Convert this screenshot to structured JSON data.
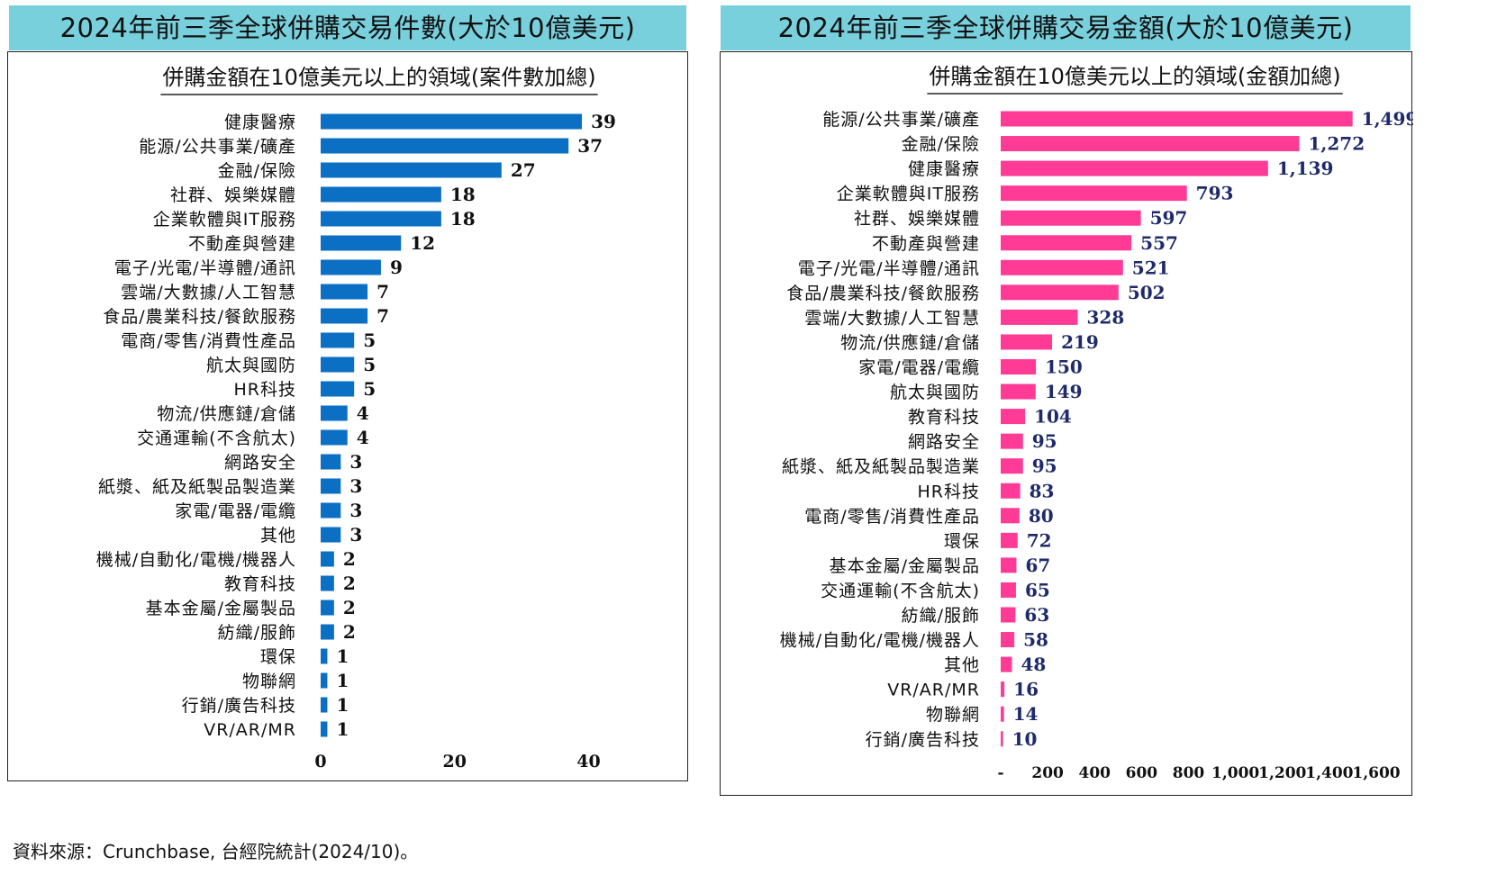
{
  "source": "資料來源：Crunchbase, 台經院統計(2024/10)。",
  "colors": {
    "banner": "#79d0dd",
    "left_bar": "#0b6fc4",
    "right_bar": "#ff3b96",
    "right_value": "#1f2a6b"
  },
  "chart_data": [
    {
      "type": "bar",
      "orientation": "horizontal",
      "title": "2024年前三季全球併購交易件數(大於10億美元)",
      "subtitle": "併購金額在10億美元以上的領域(案件數加總)",
      "categories": [
        "健康醫療",
        "能源/公共事業/礦產",
        "金融/保險",
        "社群、娛樂媒體",
        "企業軟體與IT服務",
        "不動產與營建",
        "電子/光電/半導體/通訊",
        "雲端/大數據/人工智慧",
        "食品/農業科技/餐飲服務",
        "電商/零售/消費性產品",
        "航太與國防",
        "HR科技",
        "物流/供應鏈/倉儲",
        "交通運輸(不含航太)",
        "網路安全",
        "紙漿、紙及紙製品製造業",
        "家電/電器/電纜",
        "其他",
        "機械/自動化/電機/機器人",
        "教育科技",
        "基本金屬/金屬製品",
        "紡織/服飾",
        "環保",
        "物聯網",
        "行銷/廣告科技",
        "VR/AR/MR"
      ],
      "values": [
        39,
        37,
        27,
        18,
        18,
        12,
        9,
        7,
        7,
        5,
        5,
        5,
        4,
        4,
        3,
        3,
        3,
        3,
        2,
        2,
        2,
        2,
        1,
        1,
        1,
        1
      ],
      "value_labels": [
        "39",
        "37",
        "27",
        "18",
        "18",
        "12",
        "9",
        "7",
        "7",
        "5",
        "5",
        "5",
        "4",
        "4",
        "3",
        "3",
        "3",
        "3",
        "2",
        "2",
        "2",
        "2",
        "1",
        "1",
        "1",
        "1"
      ],
      "xlim": [
        0,
        48
      ],
      "x_ticks": [
        0,
        20,
        40
      ],
      "x_tick_labels": [
        "0",
        "20",
        "40"
      ],
      "grid": false,
      "legend": "none"
    },
    {
      "type": "bar",
      "orientation": "horizontal",
      "title": "2024年前三季全球併購交易金額(大於10億美元)",
      "subtitle": "併購金額在10億美元以上的領域(金額加總)",
      "categories": [
        "能源/公共事業/礦產",
        "金融/保險",
        "健康醫療",
        "企業軟體與IT服務",
        "社群、娛樂媒體",
        "不動產與營建",
        "電子/光電/半導體/通訊",
        "食品/農業科技/餐飲服務",
        "雲端/大數據/人工智慧",
        "物流/供應鏈/倉儲",
        "家電/電器/電纜",
        "航太與國防",
        "教育科技",
        "網路安全",
        "紙漿、紙及紙製品製造業",
        "HR科技",
        "電商/零售/消費性產品",
        "環保",
        "基本金屬/金屬製品",
        "交通運輸(不含航太)",
        "紡織/服飾",
        "機械/自動化/電機/機器人",
        "其他",
        "VR/AR/MR",
        "物聯網",
        "行銷/廣告科技"
      ],
      "values": [
        1499,
        1272,
        1139,
        793,
        597,
        557,
        521,
        502,
        328,
        219,
        150,
        149,
        104,
        95,
        95,
        83,
        80,
        72,
        67,
        65,
        63,
        58,
        48,
        16,
        14,
        10
      ],
      "value_labels": [
        "1,499",
        "1,272",
        "1,139",
        "793",
        "597",
        "557",
        "521",
        "502",
        "328",
        "219",
        "150",
        "149",
        "104",
        "95",
        "95",
        "83",
        "80",
        "72",
        "67",
        "65",
        "63",
        "58",
        "48",
        "16",
        "14",
        "10"
      ],
      "xlim": [
        0,
        1600
      ],
      "x_ticks": [
        0,
        200,
        400,
        600,
        800,
        1000,
        1200,
        1400,
        1600
      ],
      "x_tick_labels": [
        "-",
        "200",
        "400",
        "600",
        "800",
        "1,000",
        "1,200",
        "1,400",
        "1,600"
      ],
      "grid": false,
      "legend": "none"
    }
  ]
}
